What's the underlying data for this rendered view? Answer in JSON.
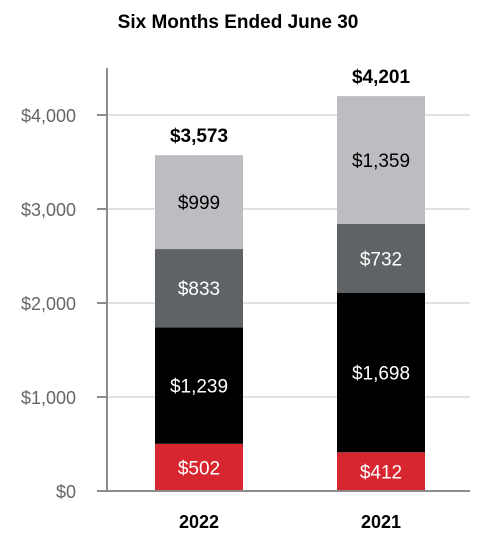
{
  "chart_data": {
    "type": "bar",
    "stacked": true,
    "title": "Six Months Ended June 30",
    "categories": [
      "2022",
      "2021"
    ],
    "series": [
      {
        "values": [
          502,
          412
        ],
        "color": "#d7262f",
        "labels": [
          "$502",
          "$412"
        ]
      },
      {
        "values": [
          1239,
          1698
        ],
        "color": "#000000",
        "labels": [
          "$1,239",
          "$1,698"
        ]
      },
      {
        "values": [
          833,
          732
        ],
        "color": "#606366",
        "labels": [
          "$833",
          "$732"
        ]
      },
      {
        "values": [
          999,
          1359
        ],
        "color": "#bcbdc0",
        "labels": [
          "$999",
          "$1,359"
        ]
      }
    ],
    "totals": [
      "$3,573",
      "$4,201"
    ],
    "total_values": [
      3573,
      4201
    ],
    "y_ticks": [
      {
        "value": 0,
        "label": "$0"
      },
      {
        "value": 1000,
        "label": "$1,000"
      },
      {
        "value": 2000,
        "label": "$2,000"
      },
      {
        "value": 3000,
        "label": "$3,000"
      },
      {
        "value": 4000,
        "label": "$4,000"
      }
    ],
    "ylim": [
      0,
      4000
    ],
    "grid": true,
    "legend": "none",
    "label_colors": {
      "#d7262f": "#ffffff",
      "#000000": "#ffffff",
      "#606366": "#ffffff",
      "#bcbdc0": "#000000"
    }
  }
}
